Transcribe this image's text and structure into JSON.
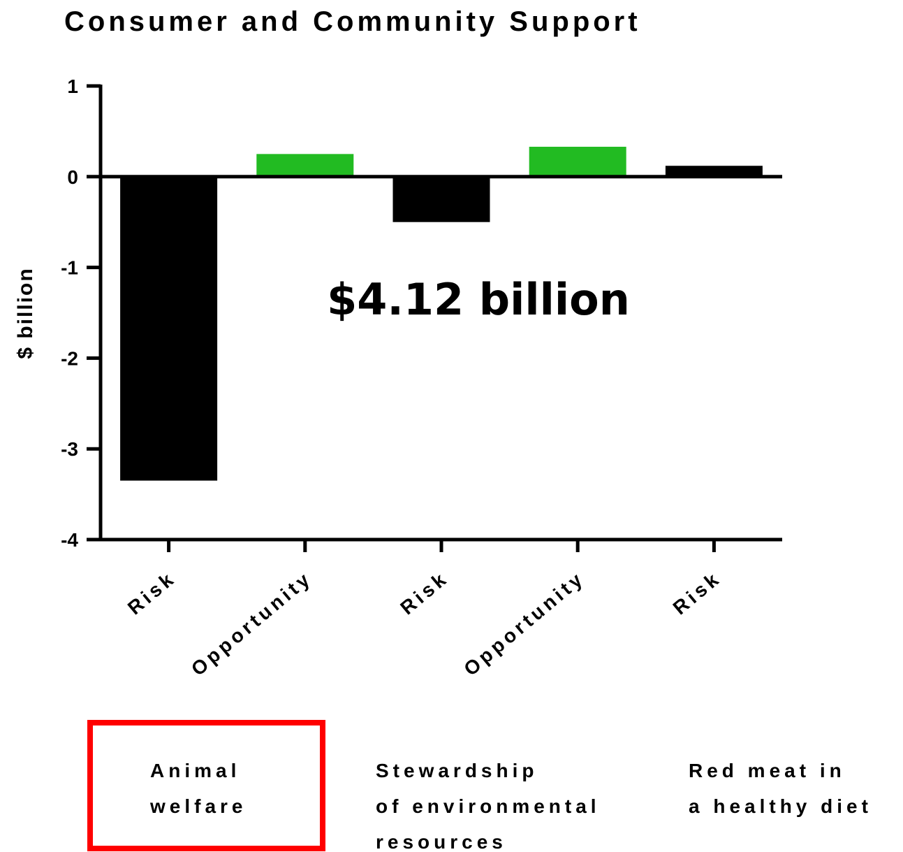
{
  "chart_data": {
    "type": "bar",
    "title": "Consumer and Community  Support",
    "ylabel": "$ billion",
    "xlabel": "",
    "ylim": [
      -4,
      1
    ],
    "yticks": [
      1,
      0,
      -1,
      -2,
      -3,
      -4
    ],
    "categories": [
      "Risk",
      "Opportunity",
      "Risk",
      "Opportunity",
      "Risk"
    ],
    "values": [
      -3.35,
      0.25,
      -0.5,
      0.33,
      0.12
    ],
    "bar_colors": [
      "#000000",
      "#22bb22",
      "#000000",
      "#22bb22",
      "#000000"
    ],
    "positive_color": "#22bb22",
    "negative_color": "#000000",
    "annotation": "$4.12 billion",
    "groups": [
      {
        "lines": [
          "Animal",
          "welfare"
        ],
        "highlighted": true,
        "highlight_color": "#ff0000"
      },
      {
        "lines": [
          "Stewardship",
          "of environmental",
          "resources"
        ],
        "highlighted": false
      },
      {
        "lines": [
          "Red meat in",
          "a healthy diet"
        ],
        "highlighted": false
      }
    ]
  }
}
